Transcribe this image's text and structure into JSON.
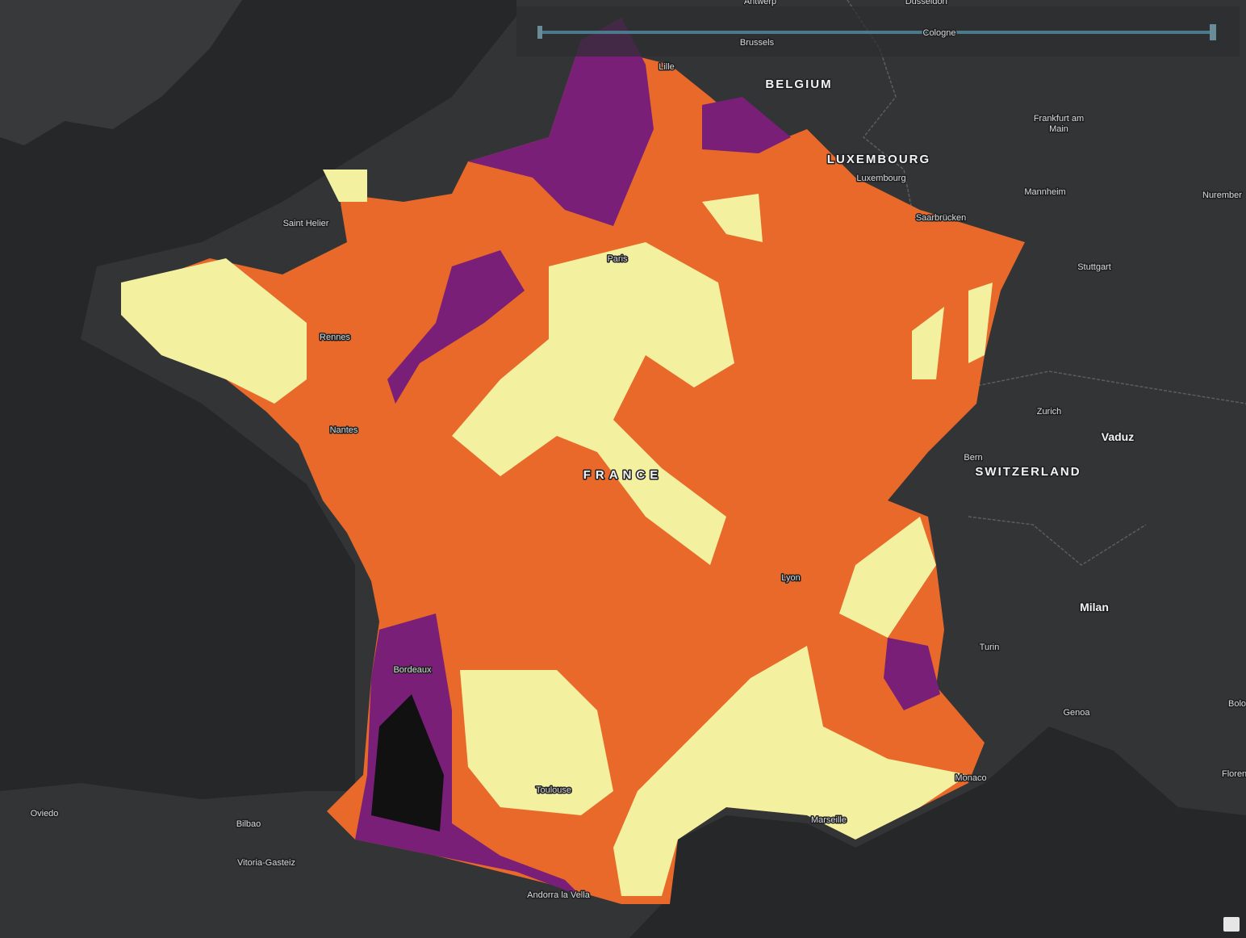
{
  "map": {
    "places": [
      "Antwerp",
      "Dusseldorf",
      "Cologne",
      "Brussels",
      "Lille",
      "BELGIUM",
      "LUXEMBOURG",
      "Luxembourg",
      "Frankfurt am",
      "Main",
      "Mannheim",
      "Nurember",
      "Saint Helier",
      "Saarbrücken",
      "Paris",
      "Stuttgart",
      "Rennes",
      "Nantes",
      "FRANCE",
      "Zurich",
      "Vaduz",
      "Bern",
      "SWITZERLAND",
      "Lyon",
      "Milan",
      "Turin",
      "Bordeaux",
      "Genoa",
      "Monaco",
      "Bolo",
      "Toulouse",
      "Marseille",
      "Floren",
      "Oviedo",
      "Bilbao",
      "Vitoria-Gasteiz",
      "Andorra la Vella"
    ]
  }
}
